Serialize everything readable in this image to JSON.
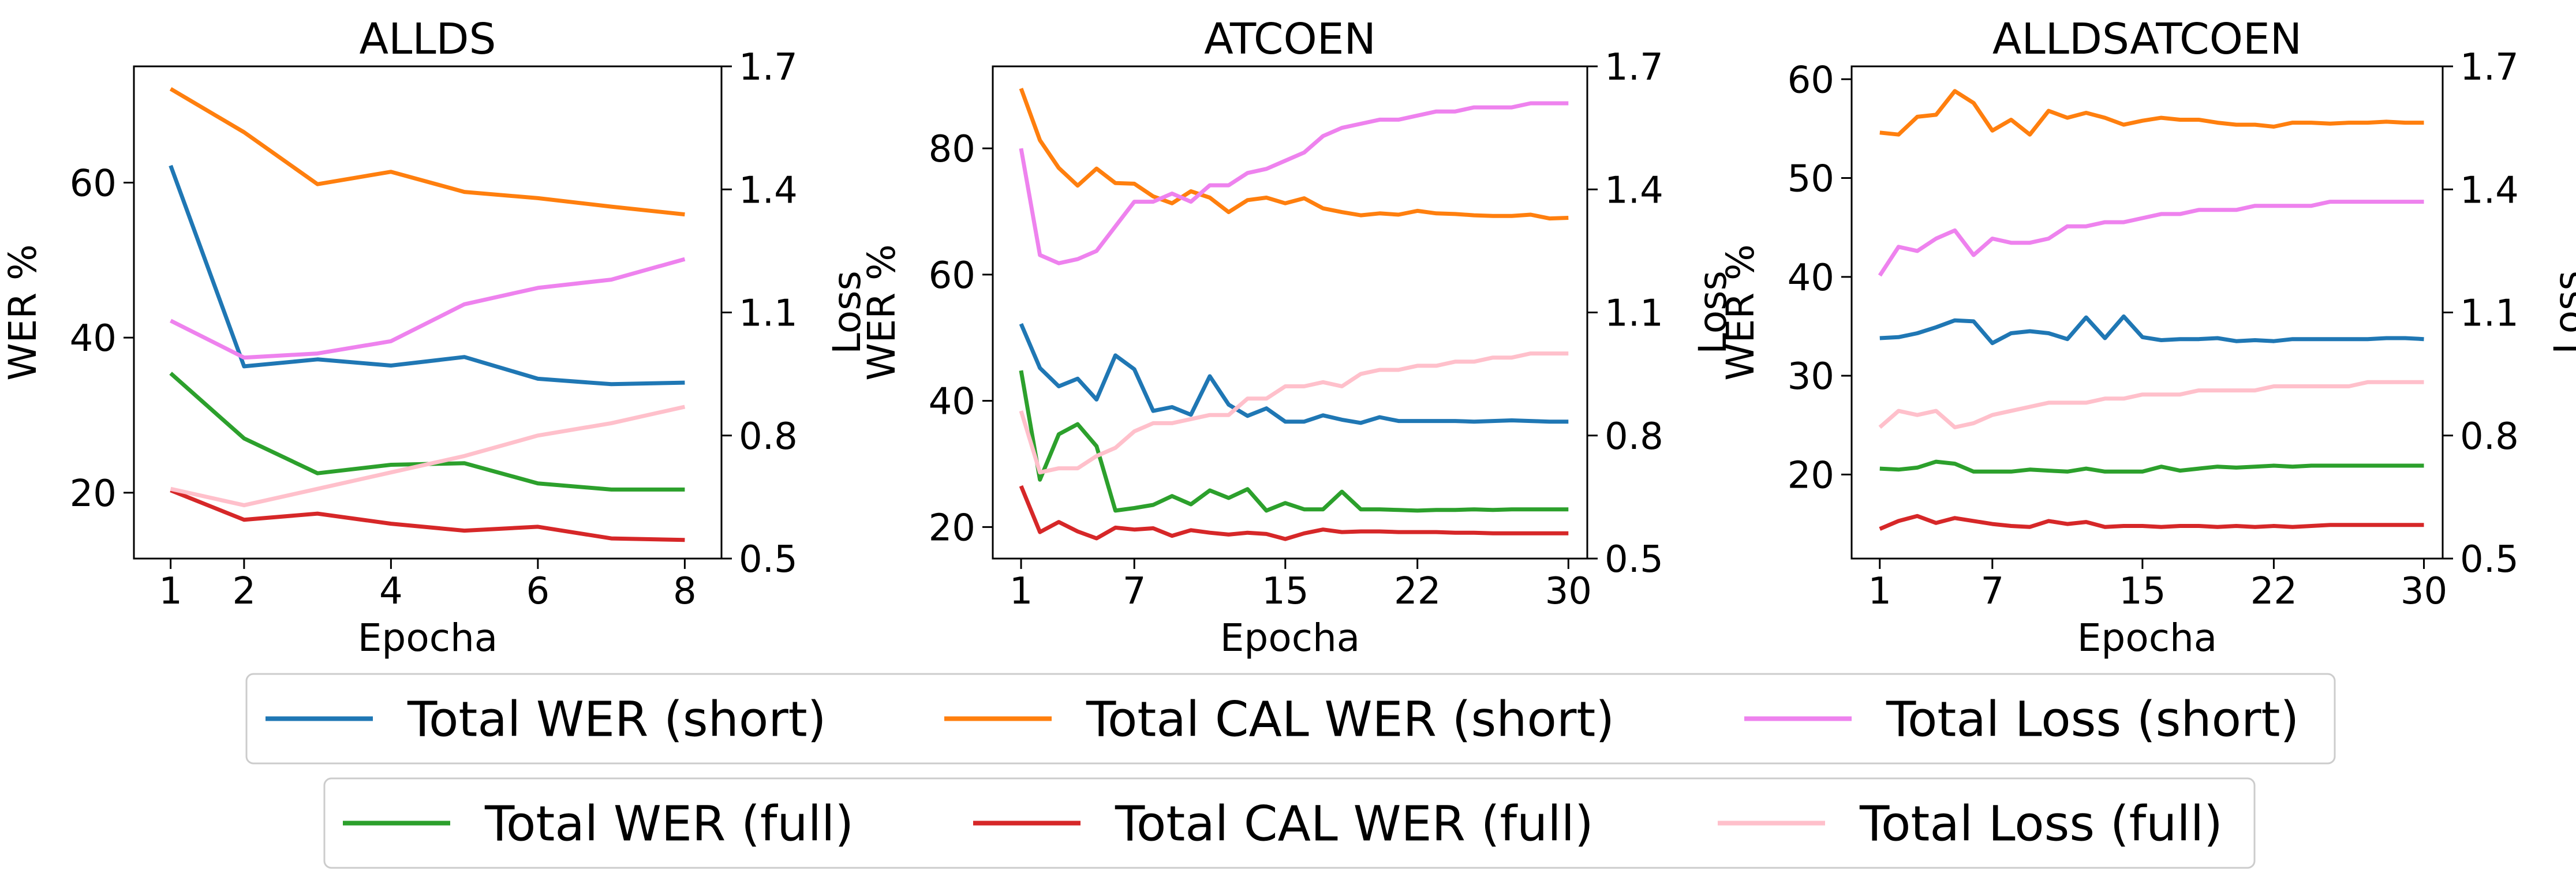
{
  "colors": {
    "wer_short": "#1f77b4",
    "cal_short": "#ff7f0e",
    "loss_short": "#ee82ee",
    "wer_full": "#2ca02c",
    "cal_full": "#d62728",
    "loss_full": "#ffc0cb"
  },
  "legend": {
    "row1": [
      "Total WER (short)",
      "Total CAL WER (short)",
      "Total Loss (short)"
    ],
    "row2": [
      "Total WER (full)",
      "Total CAL WER (full)",
      "Total Loss (full)"
    ],
    "placement": "bottom-center"
  },
  "chart_data": [
    {
      "type": "line",
      "title": "ALLDS",
      "xlabel": "Epocha",
      "ylabel": "WER %",
      "y2label": "Loss",
      "xlim": [
        0.5,
        8.5
      ],
      "ylim": [
        11.5,
        75
      ],
      "y2lim": [
        0.5,
        1.7
      ],
      "xticks": [
        "1",
        "2",
        "4",
        "6",
        "8"
      ],
      "yticks": [
        "20",
        "40",
        "60"
      ],
      "y2ticks": [
        "0.5",
        "0.8",
        "1.1",
        "1.4",
        "1.7"
      ],
      "x": [
        1,
        2,
        3,
        4,
        5,
        6,
        7,
        8
      ],
      "series": [
        {
          "name": "Total WER (short)",
          "color_key": "wer_short",
          "axis": "left",
          "values": [
            62.2,
            36.3,
            37.2,
            36.4,
            37.5,
            34.7,
            34.0,
            34.2
          ]
        },
        {
          "name": "Total CAL WER (short)",
          "color_key": "cal_short",
          "axis": "left",
          "values": [
            72.1,
            66.5,
            59.8,
            61.4,
            58.8,
            58.0,
            56.9,
            55.9
          ]
        },
        {
          "name": "Total Loss (short)",
          "color_key": "loss_short",
          "axis": "right",
          "values": [
            1.08,
            0.99,
            1.0,
            1.03,
            1.12,
            1.16,
            1.18,
            1.23
          ]
        },
        {
          "name": "Total WER (full)",
          "color_key": "wer_full",
          "axis": "left",
          "values": [
            35.4,
            27.0,
            22.5,
            23.6,
            23.8,
            21.2,
            20.4,
            20.4
          ]
        },
        {
          "name": "Total CAL WER (full)",
          "color_key": "cal_full",
          "axis": "left",
          "values": [
            20.3,
            16.5,
            17.3,
            16.0,
            15.1,
            15.6,
            14.1,
            13.9
          ]
        },
        {
          "name": "Total Loss (full)",
          "color_key": "loss_full",
          "axis": "right",
          "values": [
            0.67,
            0.63,
            0.67,
            0.71,
            0.75,
            0.8,
            0.83,
            0.87
          ]
        }
      ]
    },
    {
      "type": "line",
      "title": "ATCOEN",
      "xlabel": "Epocha",
      "ylabel": "WER %",
      "y2label": "Loss",
      "xlim": [
        -0.5,
        31
      ],
      "ylim": [
        15,
        93
      ],
      "y2lim": [
        0.5,
        1.7
      ],
      "xticks": [
        "1",
        "7",
        "15",
        "22",
        "30"
      ],
      "yticks": [
        "20",
        "40",
        "60",
        "80"
      ],
      "y2ticks": [
        "0.5",
        "0.8",
        "1.1",
        "1.4",
        "1.7"
      ],
      "x": [
        1,
        2,
        3,
        4,
        5,
        6,
        7,
        8,
        9,
        10,
        11,
        12,
        13,
        14,
        15,
        16,
        17,
        18,
        19,
        20,
        21,
        22,
        23,
        24,
        25,
        26,
        27,
        28,
        29,
        30
      ],
      "series": [
        {
          "name": "Total WER (short)",
          "color_key": "wer_short",
          "axis": "left",
          "values": [
            52.2,
            45.2,
            42.3,
            43.5,
            40.2,
            47.2,
            45.0,
            38.4,
            39.0,
            37.8,
            43.9,
            39.4,
            37.6,
            38.8,
            36.7,
            36.7,
            37.7,
            37.0,
            36.5,
            37.4,
            36.8,
            36.8,
            36.8,
            36.8,
            36.7,
            36.8,
            36.9,
            36.8,
            36.7,
            36.7
          ]
        },
        {
          "name": "Total CAL WER (short)",
          "color_key": "cal_short",
          "axis": "left",
          "values": [
            89.5,
            81.3,
            76.9,
            74.1,
            76.8,
            74.5,
            74.4,
            72.4,
            71.3,
            73.2,
            72.2,
            69.9,
            71.8,
            72.2,
            71.3,
            72.1,
            70.5,
            69.9,
            69.4,
            69.7,
            69.5,
            70.1,
            69.7,
            69.6,
            69.4,
            69.3,
            69.3,
            69.5,
            68.9,
            69.0
          ]
        },
        {
          "name": "Total Loss (short)",
          "color_key": "loss_short",
          "axis": "right",
          "values": [
            1.5,
            1.24,
            1.22,
            1.23,
            1.25,
            1.31,
            1.37,
            1.37,
            1.39,
            1.37,
            1.41,
            1.41,
            1.44,
            1.45,
            1.47,
            1.49,
            1.53,
            1.55,
            1.56,
            1.57,
            1.57,
            1.58,
            1.59,
            1.59,
            1.6,
            1.6,
            1.6,
            1.61,
            1.61,
            1.61
          ]
        },
        {
          "name": "Total WER (full)",
          "color_key": "wer_full",
          "axis": "left",
          "values": [
            44.8,
            27.5,
            34.7,
            36.3,
            32.8,
            22.6,
            23.0,
            23.5,
            24.9,
            23.6,
            25.8,
            24.6,
            26.0,
            22.6,
            23.8,
            22.8,
            22.8,
            25.6,
            22.8,
            22.8,
            22.7,
            22.6,
            22.7,
            22.7,
            22.8,
            22.7,
            22.8,
            22.8,
            22.8,
            22.8
          ]
        },
        {
          "name": "Total CAL WER (full)",
          "color_key": "cal_full",
          "axis": "left",
          "values": [
            26.5,
            19.2,
            20.8,
            19.3,
            18.2,
            19.9,
            19.6,
            19.8,
            18.6,
            19.5,
            19.1,
            18.8,
            19.1,
            18.9,
            18.1,
            19.0,
            19.6,
            19.2,
            19.3,
            19.3,
            19.2,
            19.2,
            19.2,
            19.1,
            19.1,
            19.0,
            19.0,
            19.0,
            19.0,
            19.0
          ]
        },
        {
          "name": "Total Loss (full)",
          "color_key": "loss_full",
          "axis": "right",
          "values": [
            0.86,
            0.71,
            0.72,
            0.72,
            0.75,
            0.77,
            0.81,
            0.83,
            0.83,
            0.84,
            0.85,
            0.85,
            0.89,
            0.89,
            0.92,
            0.92,
            0.93,
            0.92,
            0.95,
            0.96,
            0.96,
            0.97,
            0.97,
            0.98,
            0.98,
            0.99,
            0.99,
            1.0,
            1.0,
            1.0
          ]
        }
      ]
    },
    {
      "type": "line",
      "title": "ALLDSATCOEN",
      "xlabel": "Epocha",
      "ylabel": "WER %",
      "y2label": "Loss",
      "xlim": [
        -0.5,
        31
      ],
      "ylim": [
        11.5,
        61.3
      ],
      "y2lim": [
        0.5,
        1.7
      ],
      "xticks": [
        "1",
        "7",
        "15",
        "22",
        "30"
      ],
      "yticks": [
        "20",
        "30",
        "40",
        "50",
        "60"
      ],
      "y2ticks": [
        "0.5",
        "0.8",
        "1.1",
        "1.4",
        "1.7"
      ],
      "x": [
        1,
        2,
        3,
        4,
        5,
        6,
        7,
        8,
        9,
        10,
        11,
        12,
        13,
        14,
        15,
        16,
        17,
        18,
        19,
        20,
        21,
        22,
        23,
        24,
        25,
        26,
        27,
        28,
        29,
        30
      ],
      "series": [
        {
          "name": "Total WER (short)",
          "color_key": "wer_short",
          "axis": "left",
          "values": [
            33.8,
            33.9,
            34.3,
            34.9,
            35.6,
            35.5,
            33.3,
            34.3,
            34.5,
            34.3,
            33.7,
            35.9,
            33.8,
            36.0,
            33.9,
            33.6,
            33.7,
            33.7,
            33.8,
            33.5,
            33.6,
            33.5,
            33.7,
            33.7,
            33.7,
            33.7,
            33.7,
            33.8,
            33.8,
            33.7
          ]
        },
        {
          "name": "Total CAL WER (short)",
          "color_key": "cal_short",
          "axis": "left",
          "values": [
            54.6,
            54.4,
            56.2,
            56.4,
            58.8,
            57.6,
            54.8,
            55.9,
            54.4,
            56.8,
            56.1,
            56.6,
            56.1,
            55.4,
            55.8,
            56.1,
            55.9,
            55.9,
            55.6,
            55.4,
            55.4,
            55.2,
            55.6,
            55.6,
            55.5,
            55.6,
            55.6,
            55.7,
            55.6,
            55.6
          ]
        },
        {
          "name": "Total Loss (short)",
          "color_key": "loss_short",
          "axis": "right",
          "values": [
            1.19,
            1.26,
            1.25,
            1.28,
            1.3,
            1.24,
            1.28,
            1.27,
            1.27,
            1.28,
            1.31,
            1.31,
            1.32,
            1.32,
            1.33,
            1.34,
            1.34,
            1.35,
            1.35,
            1.35,
            1.36,
            1.36,
            1.36,
            1.36,
            1.37,
            1.37,
            1.37,
            1.37,
            1.37,
            1.37
          ]
        },
        {
          "name": "Total WER (full)",
          "color_key": "wer_full",
          "axis": "left",
          "values": [
            20.6,
            20.5,
            20.7,
            21.3,
            21.1,
            20.3,
            20.3,
            20.3,
            20.5,
            20.4,
            20.3,
            20.6,
            20.3,
            20.3,
            20.3,
            20.8,
            20.4,
            20.6,
            20.8,
            20.7,
            20.8,
            20.9,
            20.8,
            20.9,
            20.9,
            20.9,
            20.9,
            20.9,
            20.9,
            20.9
          ]
        },
        {
          "name": "Total CAL WER (full)",
          "color_key": "cal_full",
          "axis": "left",
          "values": [
            14.5,
            15.3,
            15.8,
            15.1,
            15.6,
            15.3,
            15.0,
            14.8,
            14.7,
            15.3,
            15.0,
            15.2,
            14.7,
            14.8,
            14.8,
            14.7,
            14.8,
            14.8,
            14.7,
            14.8,
            14.7,
            14.8,
            14.7,
            14.8,
            14.9,
            14.9,
            14.9,
            14.9,
            14.9,
            14.9
          ]
        },
        {
          "name": "Total Loss (full)",
          "color_key": "loss_full",
          "axis": "right",
          "values": [
            0.82,
            0.86,
            0.85,
            0.86,
            0.82,
            0.83,
            0.85,
            0.86,
            0.87,
            0.88,
            0.88,
            0.88,
            0.89,
            0.89,
            0.9,
            0.9,
            0.9,
            0.91,
            0.91,
            0.91,
            0.91,
            0.92,
            0.92,
            0.92,
            0.92,
            0.92,
            0.93,
            0.93,
            0.93,
            0.93
          ]
        }
      ]
    }
  ]
}
